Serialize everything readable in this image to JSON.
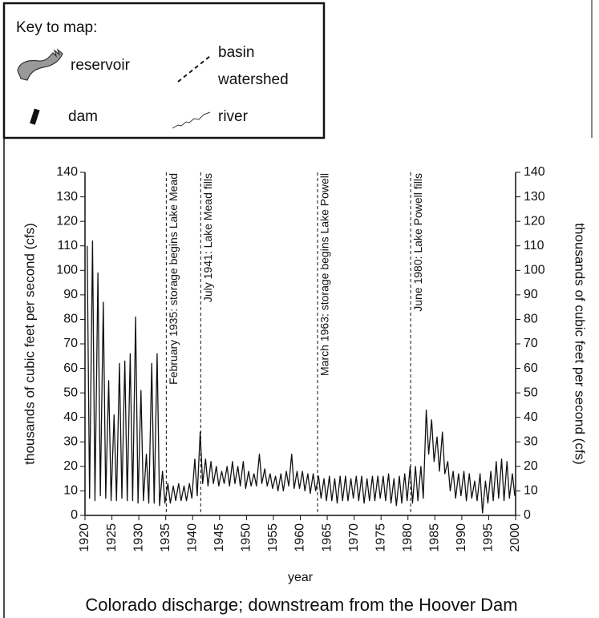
{
  "key": {
    "title": "Key to map:",
    "reservoir": "reservoir",
    "basin_watershed": [
      "basin",
      "watershed"
    ],
    "dam": "dam",
    "river": "river"
  },
  "chart_data": {
    "type": "line",
    "title": "Colorado discharge; downstream from the Hoover Dam",
    "xlabel": "year",
    "ylabel": "thousands of cubic feet per second (cfs)",
    "y2label": "thousands of cubic feet per second (cfs)",
    "xlim": [
      1920,
      2000
    ],
    "xticks": [
      1920,
      1925,
      1930,
      1935,
      1940,
      1945,
      1950,
      1955,
      1960,
      1965,
      1970,
      1975,
      1980,
      1985,
      1990,
      1995,
      2000
    ],
    "ylim": [
      0,
      140
    ],
    "yticks": [
      0,
      10,
      20,
      30,
      40,
      50,
      60,
      70,
      80,
      90,
      100,
      110,
      120,
      130,
      140
    ],
    "y2lim": [
      0,
      140
    ],
    "y2ticks": [
      0,
      10,
      20,
      30,
      40,
      50,
      60,
      70,
      80,
      90,
      100,
      110,
      120,
      130,
      140
    ],
    "annotations": [
      {
        "x": 1935.1,
        "text": "February 1935: storage begins Lake Mead"
      },
      {
        "x": 1941.5,
        "text": "July 1941: Lake Mead fills"
      },
      {
        "x": 1963.2,
        "text": "March 1963: storage begins Lake Powell"
      },
      {
        "x": 1980.5,
        "text": "June 1980: Lake Powell fills"
      }
    ],
    "x": [
      1920.4,
      1920.85,
      1921.4,
      1921.85,
      1922.4,
      1922.85,
      1923.4,
      1923.85,
      1924.4,
      1924.85,
      1925.4,
      1925.85,
      1926.4,
      1926.85,
      1927.4,
      1927.85,
      1928.4,
      1928.85,
      1929.4,
      1929.85,
      1930.4,
      1930.85,
      1931.4,
      1931.85,
      1932.4,
      1932.85,
      1933.4,
      1933.85,
      1934.4,
      1934.85,
      1935.4,
      1935.85,
      1936.4,
      1936.85,
      1937.4,
      1937.85,
      1938.4,
      1938.85,
      1939.4,
      1939.85,
      1940.4,
      1940.85,
      1941.4,
      1941.85,
      1942.4,
      1942.85,
      1943.4,
      1943.85,
      1944.4,
      1944.85,
      1945.4,
      1945.85,
      1946.4,
      1946.85,
      1947.4,
      1947.85,
      1948.4,
      1948.85,
      1949.4,
      1949.85,
      1950.4,
      1950.85,
      1951.4,
      1951.85,
      1952.4,
      1952.85,
      1953.4,
      1953.85,
      1954.4,
      1954.85,
      1955.4,
      1955.85,
      1956.4,
      1956.85,
      1957.4,
      1957.85,
      1958.4,
      1958.85,
      1959.4,
      1959.85,
      1960.4,
      1960.85,
      1961.4,
      1961.85,
      1962.4,
      1962.85,
      1963.4,
      1963.85,
      1964.4,
      1964.85,
      1965.4,
      1965.85,
      1966.4,
      1966.85,
      1967.4,
      1967.85,
      1968.4,
      1968.85,
      1969.4,
      1969.85,
      1970.4,
      1970.85,
      1971.4,
      1971.85,
      1972.4,
      1972.85,
      1973.4,
      1973.85,
      1974.4,
      1974.85,
      1975.4,
      1975.85,
      1976.4,
      1976.85,
      1977.4,
      1977.85,
      1978.4,
      1978.85,
      1979.4,
      1979.85,
      1980.4,
      1980.85,
      1981.4,
      1981.85,
      1982.4,
      1982.85,
      1983.4,
      1983.85,
      1984.4,
      1984.85,
      1985.4,
      1985.85,
      1986.4,
      1986.85,
      1987.4,
      1987.85,
      1988.4,
      1988.85,
      1989.4,
      1989.85,
      1990.4,
      1990.85,
      1991.4,
      1991.85,
      1992.4,
      1992.85,
      1993.4,
      1993.85,
      1994.4,
      1994.85,
      1995.4,
      1995.85,
      1996.4,
      1996.85,
      1997.4,
      1997.85,
      1998.4,
      1998.85,
      1999.4,
      1999.85
    ],
    "series": [
      {
        "color": "#111111",
        "values": [
          110,
          7,
          112,
          6,
          99,
          8,
          87,
          7,
          55,
          6,
          41,
          6,
          62,
          7,
          63,
          6,
          66,
          6,
          81,
          5,
          51,
          6,
          25,
          5,
          62,
          5,
          66,
          4,
          18,
          5,
          13,
          5,
          12,
          6,
          13,
          6,
          12,
          6,
          13,
          7,
          23,
          8,
          34,
          13,
          23,
          12,
          22,
          13,
          20,
          12,
          18,
          13,
          20,
          12,
          22,
          13,
          20,
          12,
          22,
          11,
          18,
          12,
          17,
          12,
          25,
          13,
          19,
          12,
          17,
          11,
          16,
          10,
          17,
          10,
          18,
          12,
          25,
          11,
          18,
          11,
          18,
          10,
          17,
          9,
          17,
          10,
          16,
          7,
          15,
          6,
          16,
          6,
          15,
          5,
          16,
          6,
          16,
          6,
          15,
          7,
          16,
          6,
          16,
          5,
          15,
          6,
          16,
          6,
          16,
          7,
          16,
          6,
          17,
          5,
          15,
          4,
          16,
          5,
          17,
          6,
          20,
          5,
          20,
          6,
          20,
          7,
          43,
          25,
          39,
          22,
          32,
          18,
          34,
          17,
          22,
          10,
          18,
          7,
          17,
          8,
          18,
          6,
          17,
          7,
          14,
          6,
          17,
          1,
          14,
          5,
          18,
          6,
          22,
          7,
          23,
          6,
          22,
          7,
          17,
          8
        ]
      }
    ]
  }
}
